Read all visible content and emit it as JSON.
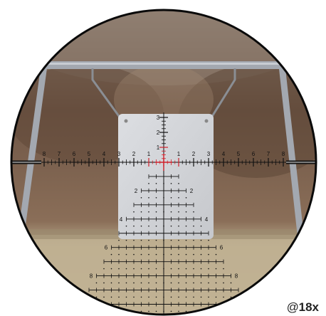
{
  "magnification": {
    "prefix": "@",
    "value": "18",
    "suffix": "x"
  },
  "reticle": {
    "color_main": "#111111",
    "color_center": "#d0202a",
    "horizontal_labels": [
      "8",
      "7",
      "6",
      "5",
      "4",
      "3",
      "2",
      "1",
      "1",
      "2",
      "3",
      "4",
      "5",
      "6",
      "7",
      "8"
    ],
    "vertical_labels": [
      "3",
      "2",
      "1"
    ],
    "tree_labels_left": [
      "2",
      "4",
      "6",
      "8"
    ],
    "tree_labels_right": [
      "2",
      "4",
      "6",
      "8"
    ]
  },
  "colors": {
    "sky": "#a9a39a",
    "hill": "#7a5e4c",
    "grass": "#b8a98a",
    "target": "#d4d6da",
    "frame": "#9ea3ab"
  }
}
